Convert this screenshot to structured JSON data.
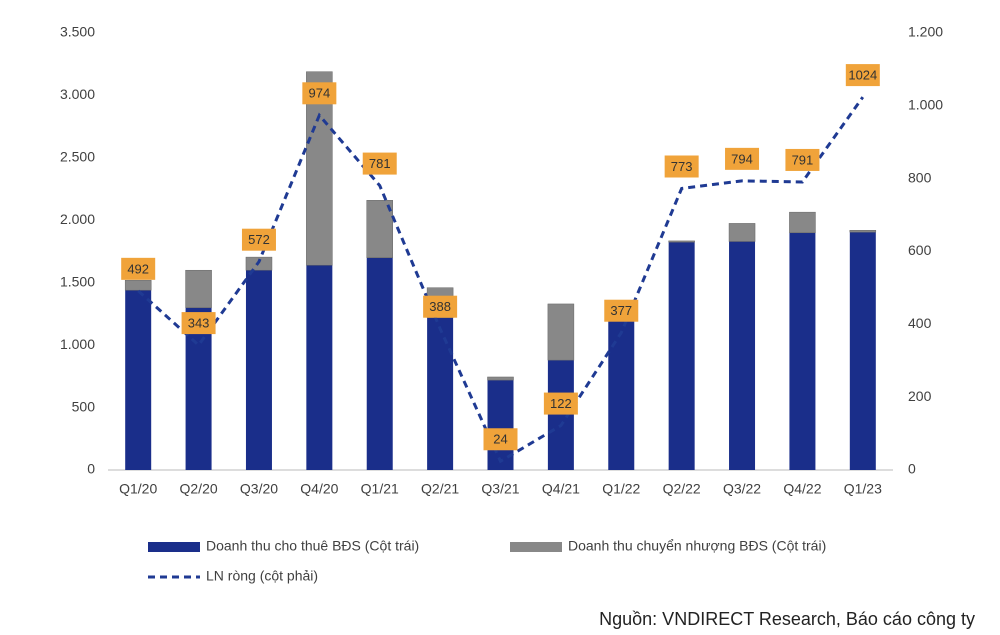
{
  "chart_data": {
    "type": "bar-line",
    "categories": [
      "Q1/20",
      "Q2/20",
      "Q3/20",
      "Q4/20",
      "Q1/21",
      "Q2/21",
      "Q3/21",
      "Q4/21",
      "Q1/22",
      "Q2/22",
      "Q3/22",
      "Q4/22",
      "Q1/23"
    ],
    "series": [
      {
        "name": "Doanh thu cho thuê BĐS (Cột trái)",
        "color": "#1a2e8a",
        "type": "bar",
        "values": [
          1440,
          1300,
          1600,
          1640,
          1700,
          1220,
          720,
          880,
          1200,
          1825,
          1830,
          1900,
          1905
        ]
      },
      {
        "name": "Doanh thu chuyển nhượng BĐS (Cột trái)",
        "color": "#888888",
        "type": "bar",
        "values": [
          80,
          300,
          105,
          1550,
          460,
          240,
          25,
          450,
          0,
          10,
          145,
          165,
          15
        ]
      },
      {
        "name": "LN ròng (cột phải)",
        "color": "#1f3a93",
        "type": "line",
        "axis": "y2",
        "values": [
          492,
          343,
          572,
          974,
          781,
          388,
          24,
          122,
          377,
          773,
          794,
          791,
          1024
        ]
      }
    ],
    "ylim": [
      0,
      3500
    ],
    "yticks": [
      0,
      500,
      {
        "value": 1000,
        "label": "1.000"
      },
      {
        "value": 1500,
        "label": "1.500"
      },
      {
        "value": 2000,
        "label": "2.000"
      },
      {
        "value": 2500,
        "label": "2.500"
      },
      {
        "value": 3000,
        "label": "3.000"
      },
      {
        "value": 3500,
        "label": "3.500"
      }
    ],
    "y2lim": [
      0,
      1200
    ],
    "y2ticks": [
      0,
      200,
      400,
      600,
      800,
      {
        "value": 1000,
        "label": "1.000"
      },
      {
        "value": 1200,
        "label": "1.200"
      }
    ],
    "label_color": "#f0a33a",
    "source": "Nguồn: VNDIRECT Research, Báo cáo công ty"
  }
}
